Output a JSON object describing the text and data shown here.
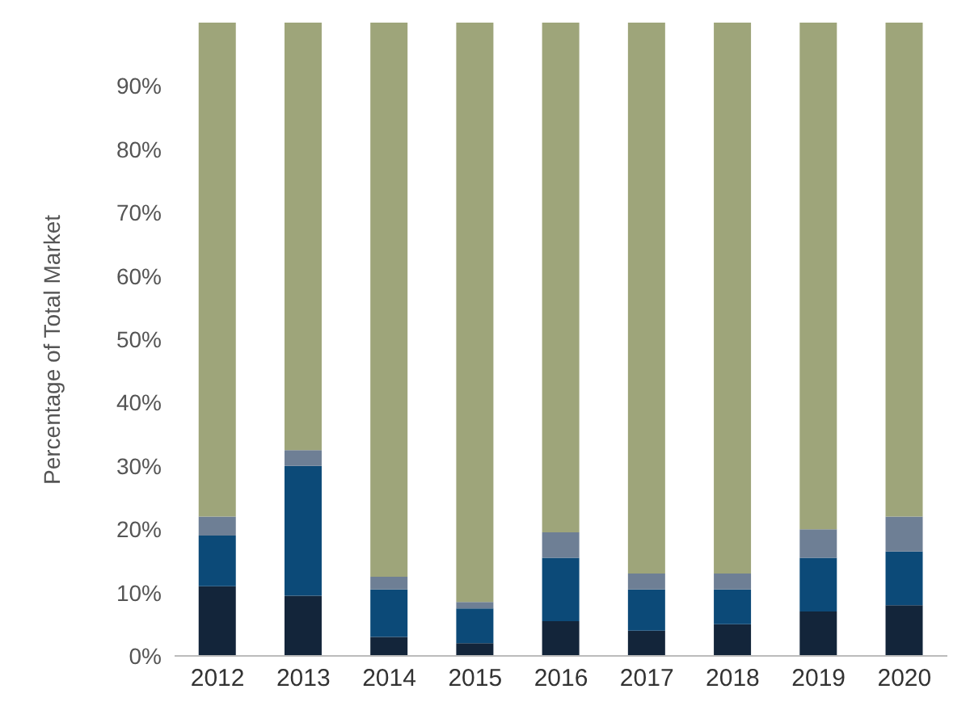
{
  "chart_data": {
    "type": "bar",
    "stacked": true,
    "ylabel": "Percentage of Total Market",
    "categories": [
      "2012",
      "2013",
      "2014",
      "2015",
      "2016",
      "2017",
      "2018",
      "2019",
      "2020"
    ],
    "series": [
      {
        "color": "#13253a",
        "values": [
          11,
          9.5,
          3,
          2,
          5.5,
          4,
          5,
          7,
          8
        ]
      },
      {
        "color": "#0c4a78",
        "values": [
          8,
          20.5,
          7.5,
          5.5,
          10,
          6.5,
          5.5,
          8.5,
          8.5
        ]
      },
      {
        "color": "#6e7f95",
        "values": [
          3,
          2.5,
          2,
          1,
          4,
          2.5,
          2.5,
          4.5,
          5.5
        ]
      },
      {
        "color": "#9ea57a",
        "values": [
          78,
          67.5,
          87.5,
          91.5,
          80.5,
          87,
          87,
          80,
          78
        ]
      }
    ],
    "ylim": [
      0,
      100
    ],
    "yticks": [
      {
        "value": 0,
        "label": "0%"
      },
      {
        "value": 10,
        "label": "10%"
      },
      {
        "value": 20,
        "label": "20%"
      },
      {
        "value": 30,
        "label": "30%"
      },
      {
        "value": 40,
        "label": "40%"
      },
      {
        "value": 50,
        "label": "50%"
      },
      {
        "value": 60,
        "label": "60%"
      },
      {
        "value": 70,
        "label": "70%"
      },
      {
        "value": 80,
        "label": "80%"
      },
      {
        "value": 90,
        "label": "90%"
      }
    ],
    "legend": false
  }
}
